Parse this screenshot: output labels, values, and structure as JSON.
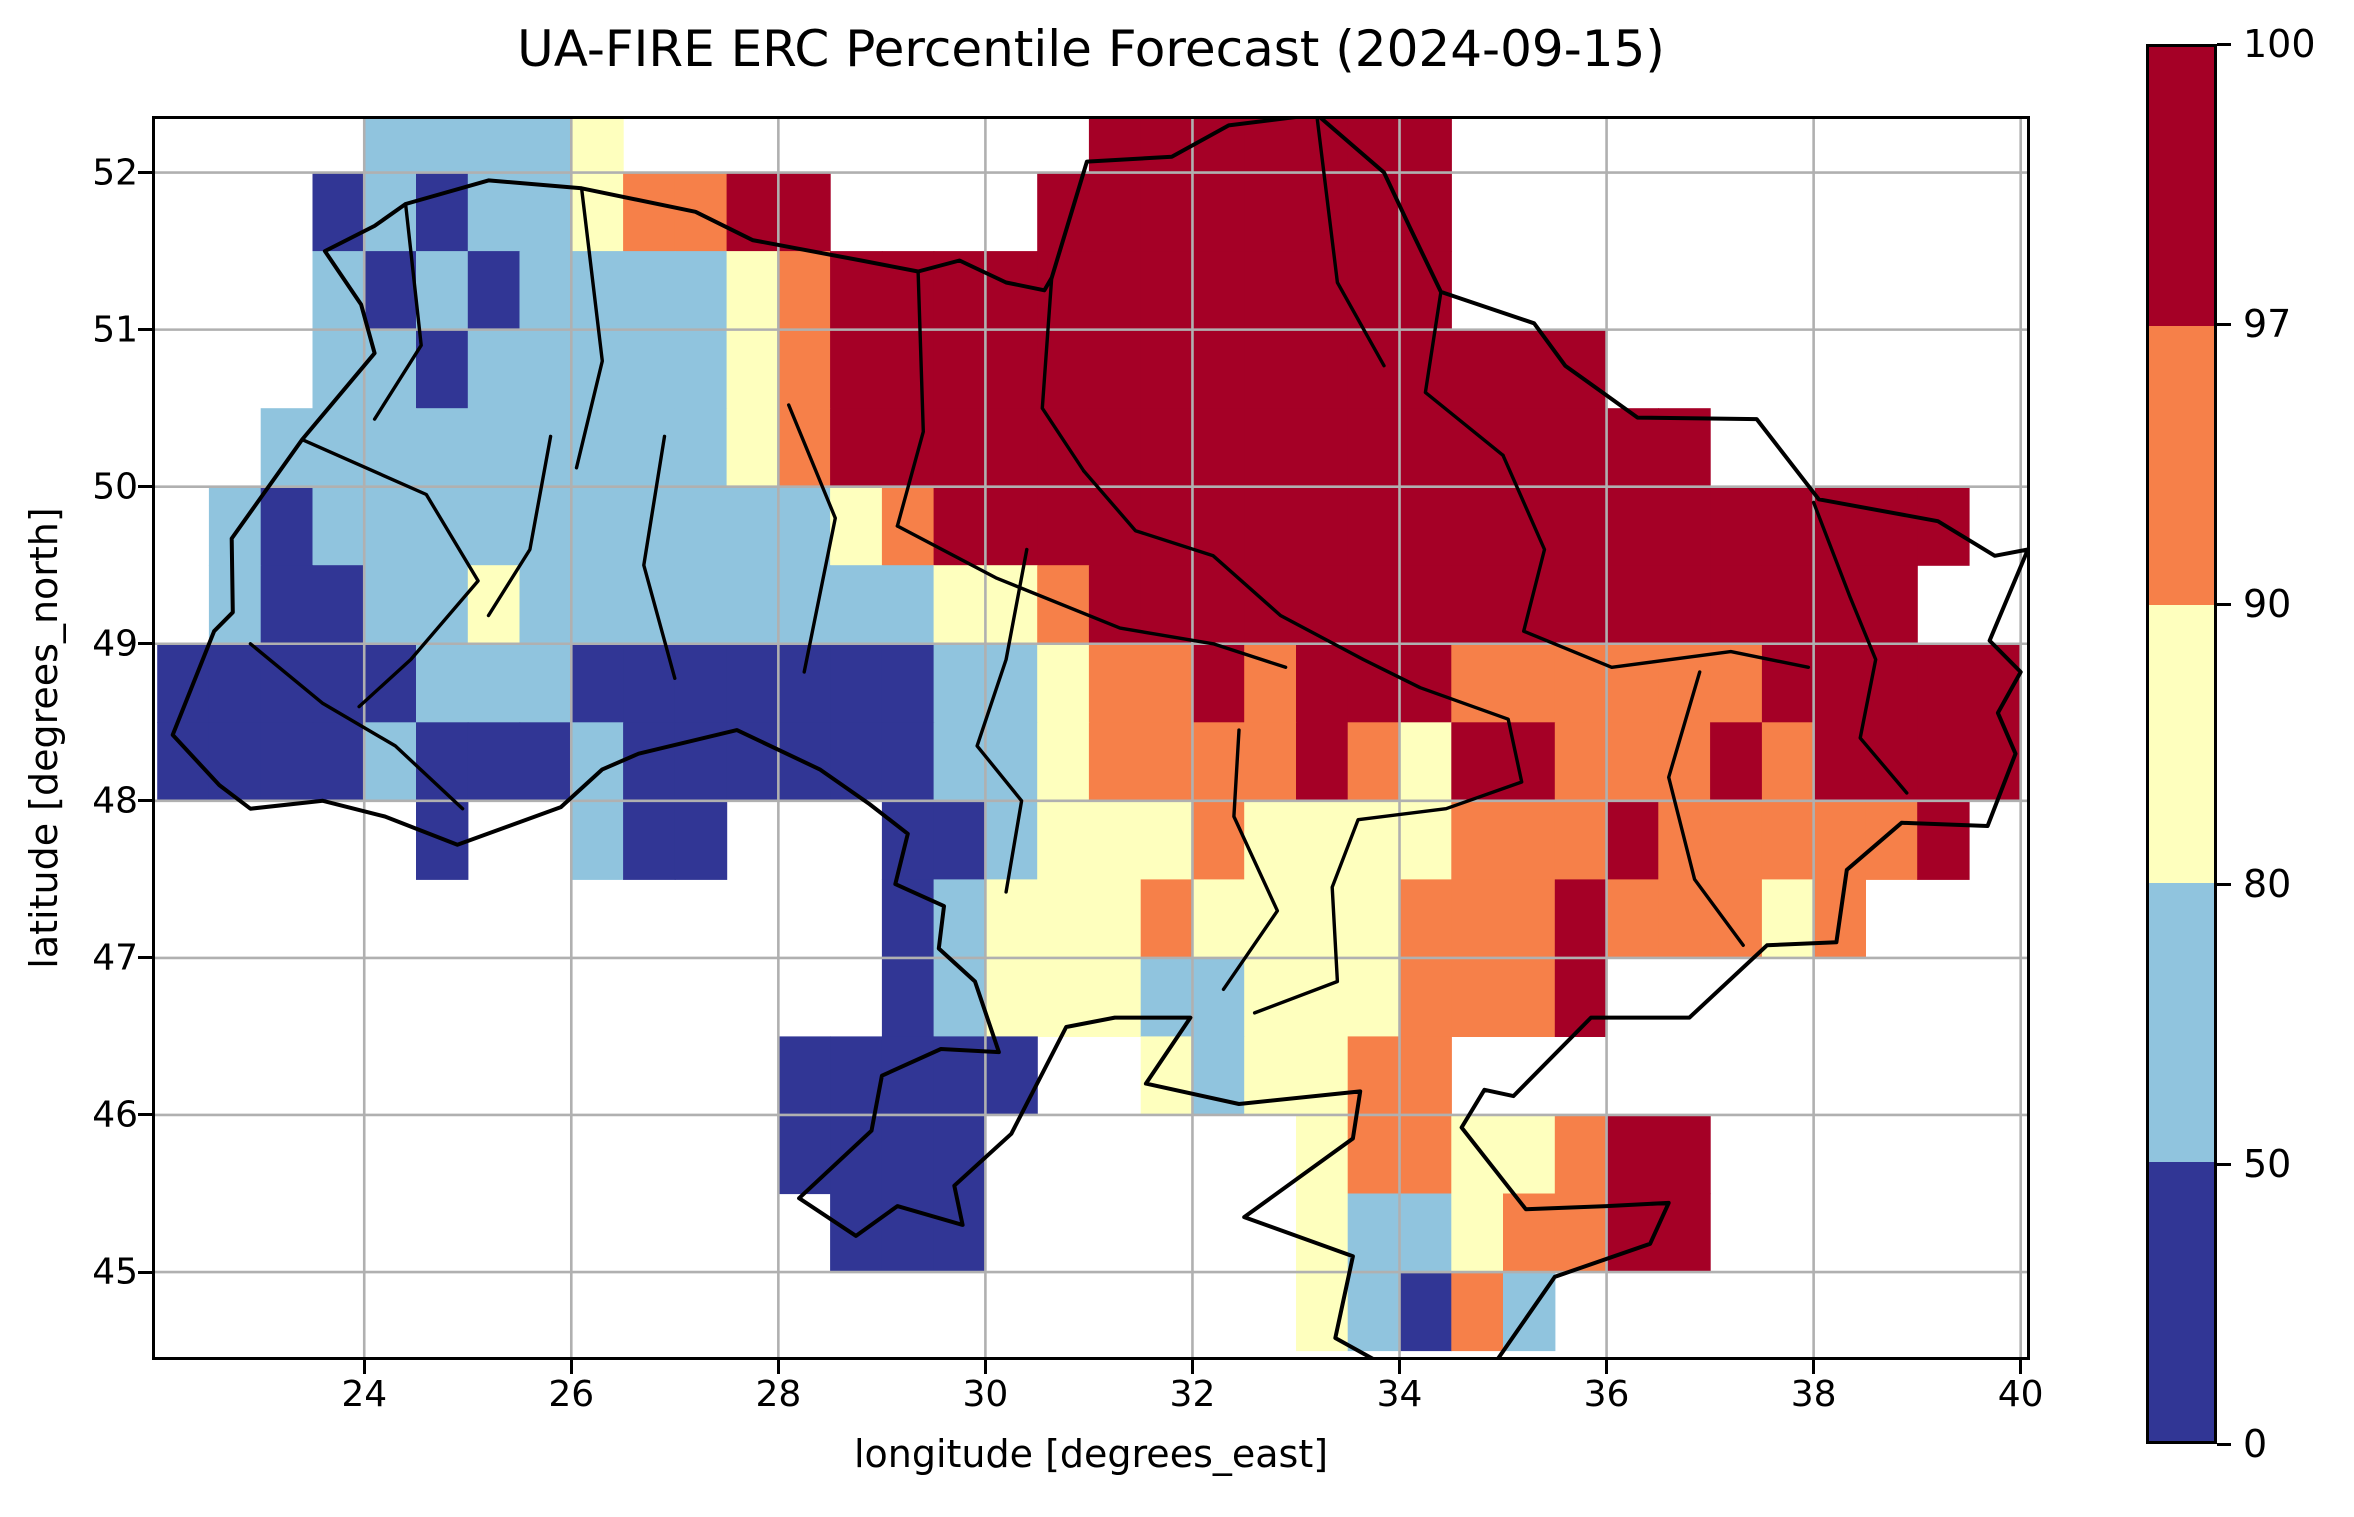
{
  "title": "UA-FIRE ERC Percentile Forecast (2024-09-15)",
  "x_axis": {
    "label": "longitude [degrees_east]",
    "ticks": [
      24,
      26,
      28,
      30,
      32,
      34,
      36,
      38,
      40
    ]
  },
  "y_axis": {
    "label": "latitude [degrees_north]",
    "ticks": [
      45,
      46,
      47,
      48,
      49,
      50,
      51,
      52
    ]
  },
  "colorbar": {
    "ticks_top_down": [
      "100",
      "97",
      "90",
      "80",
      "50",
      "0"
    ],
    "colors_top_down": [
      "#A50026",
      "#F68049",
      "#FEFFBE",
      "#90C4DE",
      "#313695"
    ]
  },
  "chart_data": {
    "type": "heatmap",
    "title": "UA-FIRE ERC Percentile Forecast (2024-09-15)",
    "xlabel": "longitude [degrees_east]",
    "ylabel": "latitude [degrees_north]",
    "x_range": [
      21.95,
      40.09
    ],
    "y_range": [
      44.44,
      52.36
    ],
    "grid_on": true,
    "grid_color": "#b0b0b0",
    "value_bins": [
      0,
      50,
      80,
      90,
      97,
      100
    ],
    "palette": {
      "1": "#313695",
      "2": "#90C4DE",
      "3": "#FEFFBE",
      "4": "#F68049",
      "5": "#A50026"
    },
    "code_map": {
      ".": "no data",
      "1": "0-50 percentile",
      "2": "50-80 percentile",
      "3": "80-90 percentile",
      "4": "90-97 percentile",
      "5": "97-100 percentile"
    },
    "grid_origin": {
      "lon_left": 22.0,
      "lat_top": 52.5,
      "cell_deg": 0.5
    },
    "grid_codes": [
      "....22223.........5555555...........",
      "...1212234455....55555555...........",
      "...2121222234555555555555...........",
      "...2212222234555555555555555........",
      "..2222222223455555555555555555......",
      ".2122222222223455555555555555555555.",
      ".211223222222223345555555555555555..",
      "111112221111111223445455544444455555",
      "111121112111111223444454355444545555",
      ".....1..211...112333433334445444445.",
      "..............1233343333444544434...",
      "..............12333223334445........",
      "............11111..323344...........",
      "............1111......34433455......",
      ".............111......32234455......",
      "......................32142........."
    ]
  },
  "map_layers": {
    "country_border": [
      [
        23.62,
        51.5
      ],
      [
        24.1,
        51.66
      ],
      [
        24.4,
        51.8
      ],
      [
        25.2,
        51.95
      ],
      [
        26.1,
        51.9
      ],
      [
        27.2,
        51.75
      ],
      [
        27.75,
        51.57
      ],
      [
        28.8,
        51.44
      ],
      [
        29.35,
        51.37
      ],
      [
        29.75,
        51.44
      ],
      [
        30.2,
        51.3
      ],
      [
        30.57,
        51.25
      ],
      [
        30.64,
        51.33
      ],
      [
        30.98,
        52.07
      ],
      [
        31.8,
        52.1
      ],
      [
        32.35,
        52.3
      ],
      [
        33.2,
        52.37
      ],
      [
        33.85,
        52.0
      ],
      [
        34.1,
        51.65
      ],
      [
        34.4,
        51.24
      ],
      [
        35.3,
        51.04
      ],
      [
        35.6,
        50.77
      ],
      [
        36.3,
        50.44
      ],
      [
        37.45,
        50.43
      ],
      [
        38.05,
        49.92
      ],
      [
        39.2,
        49.78
      ],
      [
        39.75,
        49.56
      ],
      [
        40.07,
        49.6
      ],
      [
        39.7,
        49.02
      ],
      [
        40.0,
        48.82
      ],
      [
        39.78,
        48.56
      ],
      [
        39.95,
        48.3
      ],
      [
        39.68,
        47.84
      ],
      [
        38.85,
        47.86
      ],
      [
        38.32,
        47.56
      ],
      [
        38.22,
        47.1
      ],
      [
        37.55,
        47.08
      ],
      [
        36.8,
        46.62
      ],
      [
        35.85,
        46.62
      ],
      [
        35.1,
        46.12
      ],
      [
        34.82,
        46.16
      ],
      [
        34.6,
        45.92
      ],
      [
        35.22,
        45.4
      ],
      [
        36.0,
        45.42
      ],
      [
        36.6,
        45.44
      ],
      [
        36.42,
        45.18
      ],
      [
        35.5,
        44.97
      ],
      [
        34.9,
        44.4
      ],
      [
        33.9,
        44.39
      ],
      [
        33.38,
        44.58
      ],
      [
        33.55,
        45.1
      ],
      [
        32.5,
        45.35
      ],
      [
        33.55,
        45.85
      ],
      [
        33.62,
        46.15
      ],
      [
        32.45,
        46.07
      ],
      [
        31.55,
        46.2
      ],
      [
        31.98,
        46.62
      ],
      [
        31.25,
        46.62
      ],
      [
        30.78,
        46.56
      ],
      [
        30.25,
        45.88
      ],
      [
        29.7,
        45.55
      ],
      [
        29.78,
        45.3
      ],
      [
        29.15,
        45.42
      ],
      [
        28.75,
        45.23
      ],
      [
        28.2,
        45.47
      ],
      [
        28.9,
        45.9
      ],
      [
        29.0,
        46.25
      ],
      [
        29.57,
        46.42
      ],
      [
        30.13,
        46.4
      ],
      [
        29.9,
        46.85
      ],
      [
        29.55,
        47.06
      ],
      [
        29.6,
        47.33
      ],
      [
        29.13,
        47.47
      ],
      [
        29.25,
        47.79
      ],
      [
        28.88,
        47.98
      ],
      [
        28.4,
        48.2
      ],
      [
        27.6,
        48.45
      ],
      [
        26.65,
        48.3
      ],
      [
        26.3,
        48.2
      ],
      [
        25.9,
        47.96
      ],
      [
        24.9,
        47.72
      ],
      [
        24.2,
        47.9
      ],
      [
        23.6,
        48.0
      ],
      [
        22.9,
        47.95
      ],
      [
        22.6,
        48.1
      ],
      [
        22.15,
        48.42
      ],
      [
        22.55,
        49.08
      ],
      [
        22.73,
        49.2
      ],
      [
        22.72,
        49.67
      ],
      [
        23.4,
        50.3
      ],
      [
        24.1,
        50.85
      ],
      [
        23.97,
        51.16
      ],
      [
        23.62,
        51.5
      ]
    ],
    "oblast_lines": [
      [
        [
          24.4,
          51.8
        ],
        [
          24.55,
          50.9
        ],
        [
          24.1,
          50.43
        ]
      ],
      [
        [
          26.1,
          51.9
        ],
        [
          26.3,
          50.8
        ],
        [
          26.05,
          50.12
        ]
      ],
      [
        [
          29.35,
          51.37
        ],
        [
          29.4,
          50.35
        ],
        [
          29.15,
          49.75
        ]
      ],
      [
        [
          30.64,
          51.33
        ],
        [
          30.55,
          50.5
        ],
        [
          30.95,
          50.1
        ]
      ],
      [
        [
          33.2,
          52.37
        ],
        [
          33.4,
          51.3
        ],
        [
          33.85,
          50.77
        ]
      ],
      [
        [
          34.4,
          51.24
        ],
        [
          34.25,
          50.6
        ],
        [
          35.0,
          50.2
        ]
      ],
      [
        [
          23.4,
          50.3
        ],
        [
          24.6,
          49.95
        ],
        [
          25.1,
          49.4
        ],
        [
          24.45,
          48.9
        ],
        [
          23.95,
          48.6
        ]
      ],
      [
        [
          25.8,
          50.32
        ],
        [
          25.6,
          49.6
        ],
        [
          25.2,
          49.18
        ]
      ],
      [
        [
          26.9,
          50.32
        ],
        [
          26.7,
          49.5
        ],
        [
          27.0,
          48.78
        ]
      ],
      [
        [
          28.1,
          50.52
        ],
        [
          28.55,
          49.8
        ],
        [
          28.25,
          48.82
        ]
      ],
      [
        [
          29.15,
          49.75
        ],
        [
          30.1,
          49.42
        ],
        [
          31.3,
          49.1
        ],
        [
          32.2,
          49.0
        ],
        [
          32.9,
          48.85
        ]
      ],
      [
        [
          30.95,
          50.1
        ],
        [
          31.45,
          49.72
        ],
        [
          32.2,
          49.56
        ],
        [
          32.85,
          49.18
        ],
        [
          33.65,
          48.9
        ],
        [
          34.2,
          48.72
        ],
        [
          35.05,
          48.52
        ],
        [
          35.18,
          48.12
        ],
        [
          34.45,
          47.95
        ],
        [
          33.6,
          47.88
        ],
        [
          33.35,
          47.45
        ],
        [
          33.4,
          46.85
        ],
        [
          32.6,
          46.65
        ]
      ],
      [
        [
          35.0,
          50.2
        ],
        [
          35.4,
          49.6
        ],
        [
          35.2,
          49.08
        ],
        [
          36.05,
          48.85
        ],
        [
          37.2,
          48.95
        ],
        [
          37.95,
          48.85
        ]
      ],
      [
        [
          38.0,
          49.9
        ],
        [
          38.35,
          49.3
        ],
        [
          38.6,
          48.9
        ],
        [
          38.45,
          48.4
        ],
        [
          38.9,
          48.05
        ]
      ],
      [
        [
          36.9,
          48.82
        ],
        [
          36.6,
          48.15
        ],
        [
          36.85,
          47.5
        ],
        [
          37.32,
          47.08
        ]
      ],
      [
        [
          32.45,
          48.45
        ],
        [
          32.4,
          47.9
        ],
        [
          32.82,
          47.3
        ],
        [
          32.3,
          46.8
        ]
      ],
      [
        [
          30.4,
          49.6
        ],
        [
          30.2,
          48.9
        ],
        [
          29.92,
          48.35
        ],
        [
          30.35,
          48.0
        ],
        [
          30.2,
          47.42
        ]
      ],
      [
        [
          22.9,
          49.0
        ],
        [
          23.6,
          48.62
        ],
        [
          24.3,
          48.35
        ],
        [
          24.95,
          47.95
        ]
      ]
    ]
  }
}
